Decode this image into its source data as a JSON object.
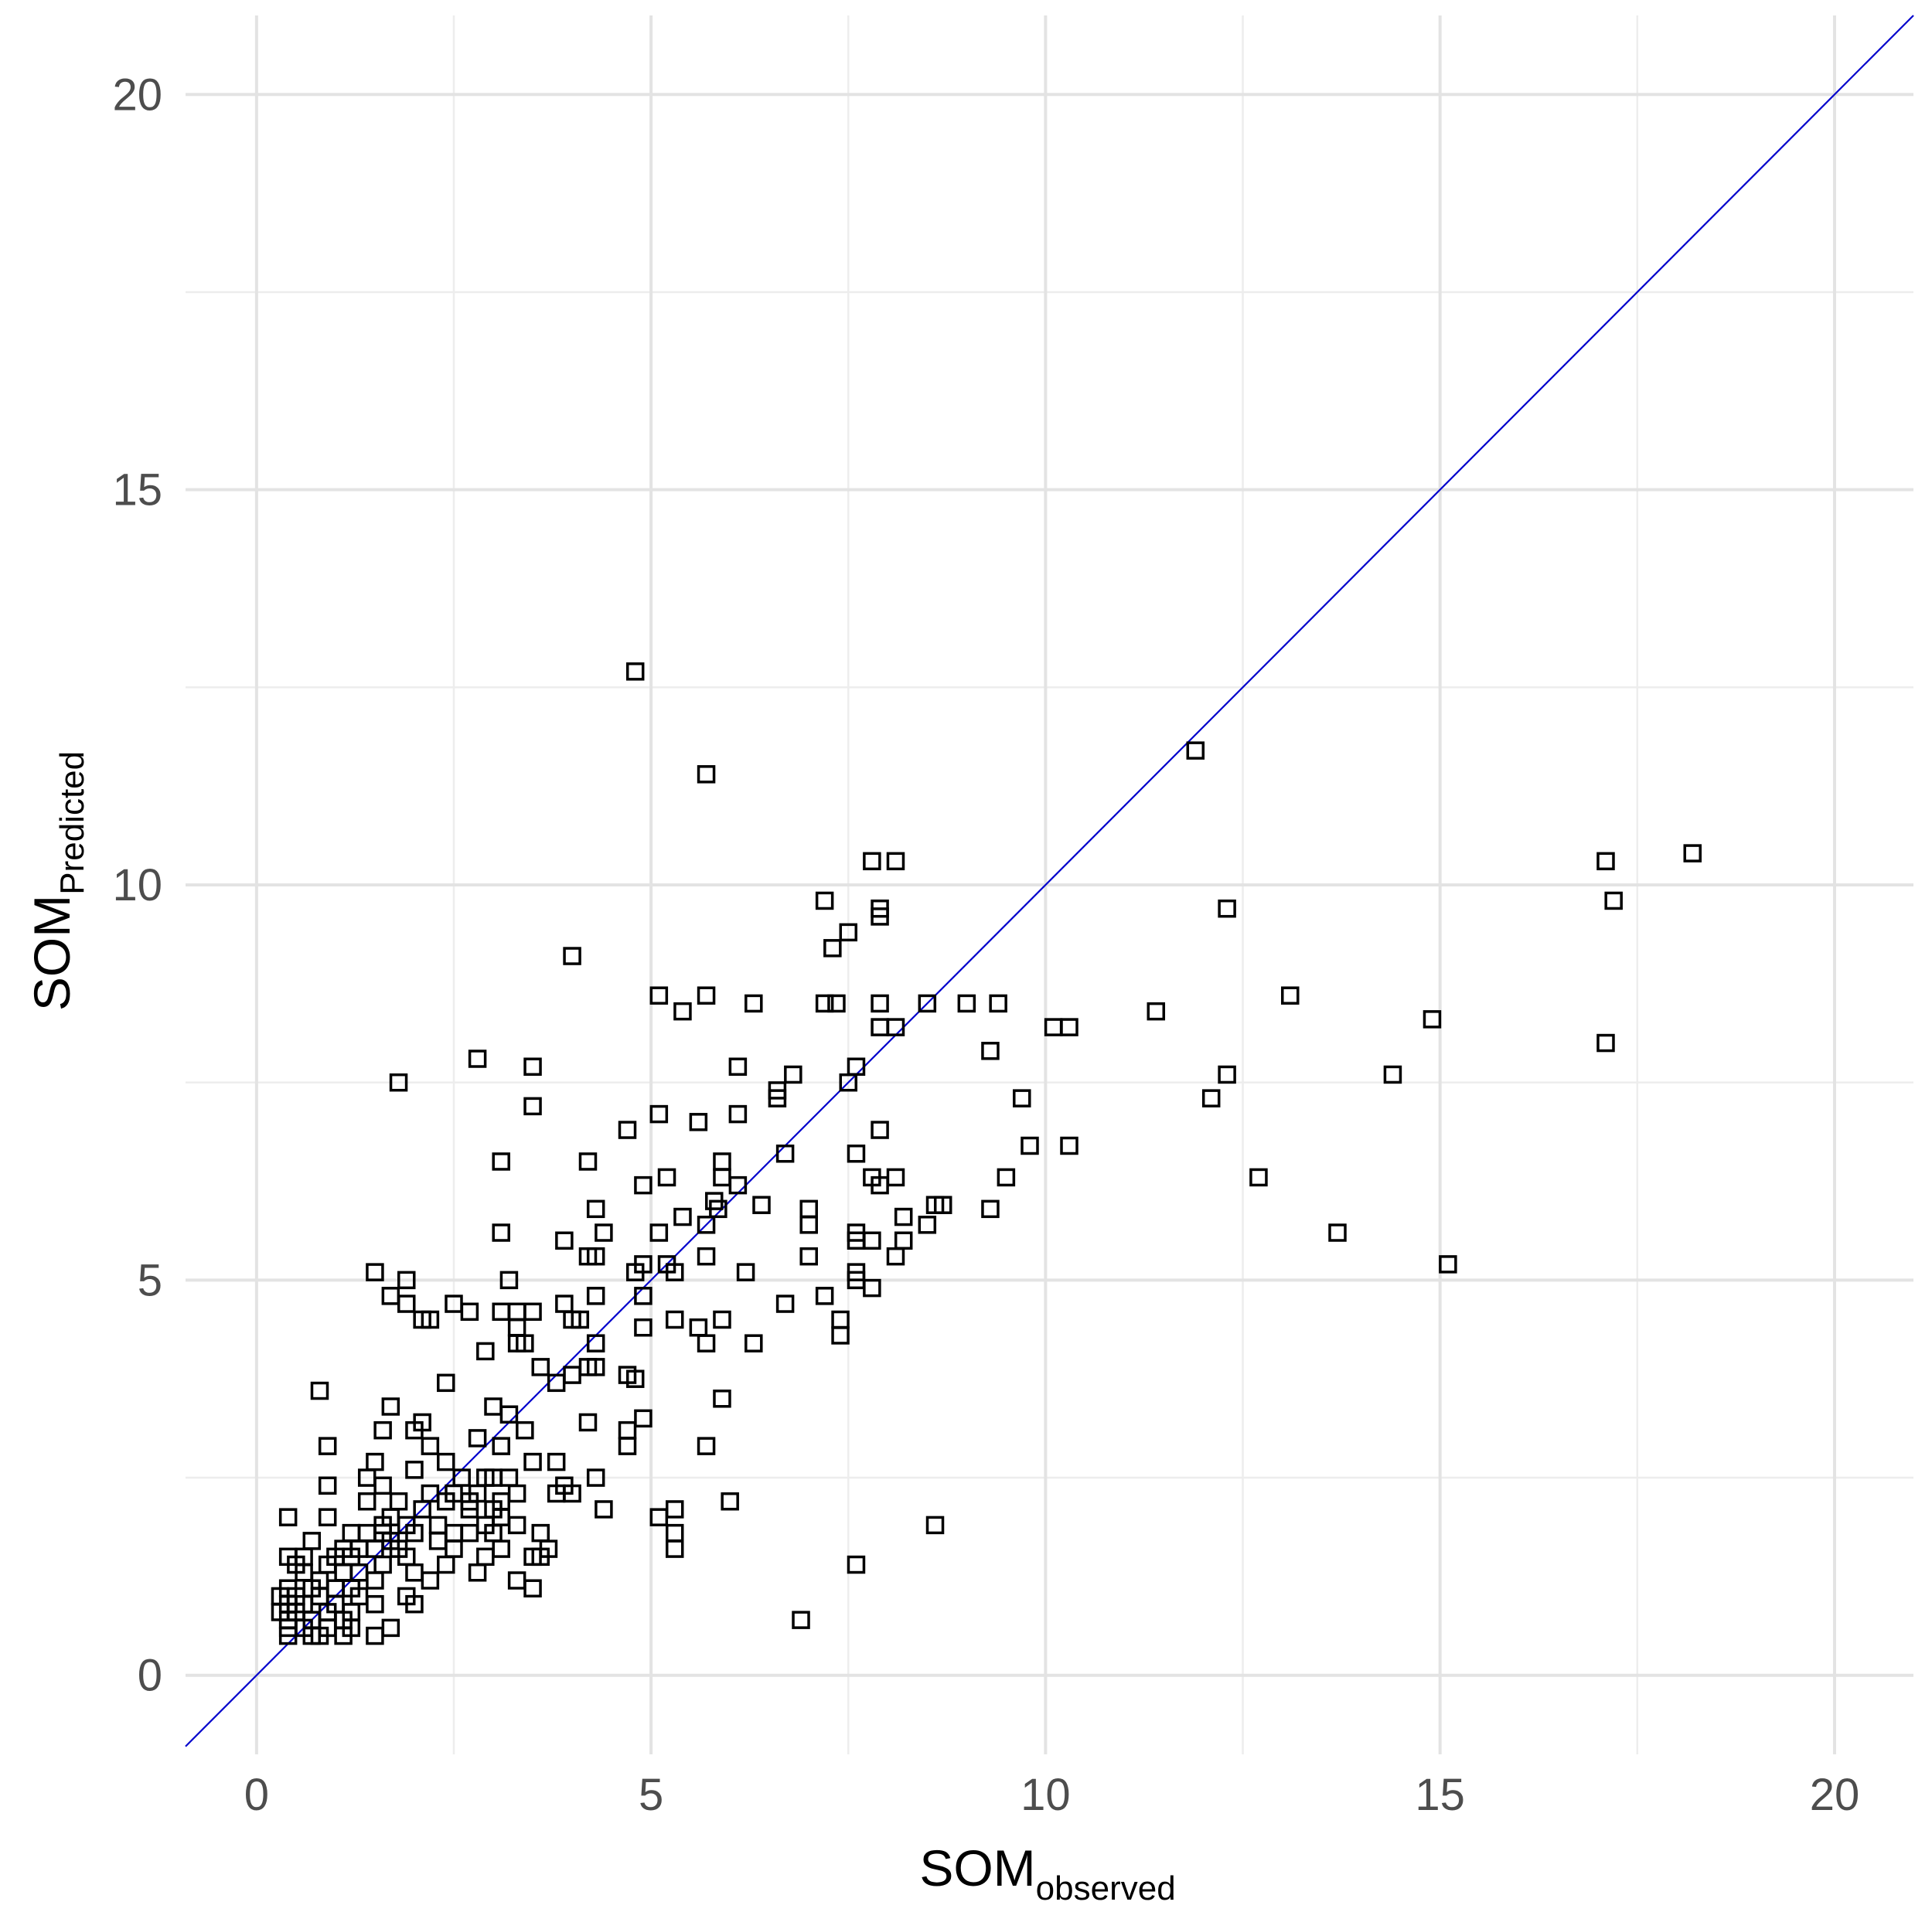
{
  "chart_data": {
    "type": "scatter",
    "title": "",
    "xlabel": {
      "main": "SOM",
      "sub": "observed"
    },
    "ylabel": {
      "main": "SOM",
      "sub": "Predicted"
    },
    "xlim": [
      -0.9,
      21.0
    ],
    "ylim": [
      -1.0,
      21.0
    ],
    "xticks": [
      0,
      5,
      10,
      15,
      20
    ],
    "yticks": [
      0,
      5,
      10,
      15,
      20
    ],
    "grid": true,
    "legend": "none",
    "marker": "open-square",
    "reference_line": {
      "type": "identity",
      "slope": 1,
      "intercept": 0,
      "color": "#0000cc"
    },
    "colors": {
      "points": "#000000",
      "reference_line": "#0000cc",
      "grid": "#e3e3e3"
    },
    "points": [
      [
        4.8,
        12.7
      ],
      [
        5.7,
        11.4
      ],
      [
        11.9,
        11.7
      ],
      [
        7.8,
        10.3
      ],
      [
        8.1,
        10.3
      ],
      [
        17.1,
        10.3
      ],
      [
        18.2,
        10.4
      ],
      [
        7.2,
        9.8
      ],
      [
        7.9,
        9.7
      ],
      [
        7.9,
        9.6
      ],
      [
        12.3,
        9.7
      ],
      [
        17.2,
        9.8
      ],
      [
        7.5,
        9.4
      ],
      [
        7.3,
        9.2
      ],
      [
        4.0,
        9.1
      ],
      [
        5.1,
        8.6
      ],
      [
        5.7,
        8.6
      ],
      [
        5.4,
        8.4
      ],
      [
        6.3,
        8.5
      ],
      [
        7.2,
        8.5
      ],
      [
        7.35,
        8.5
      ],
      [
        7.9,
        8.5
      ],
      [
        8.5,
        8.5
      ],
      [
        9.0,
        8.5
      ],
      [
        9.4,
        8.5
      ],
      [
        11.4,
        8.4
      ],
      [
        13.1,
        8.6
      ],
      [
        7.9,
        8.2
      ],
      [
        8.1,
        8.2
      ],
      [
        10.1,
        8.2
      ],
      [
        10.3,
        8.2
      ],
      [
        14.9,
        8.3
      ],
      [
        17.1,
        8.0
      ],
      [
        9.3,
        7.9
      ],
      [
        2.8,
        7.8
      ],
      [
        3.5,
        7.7
      ],
      [
        1.8,
        7.5
      ],
      [
        6.1,
        7.7
      ],
      [
        6.8,
        7.6
      ],
      [
        7.6,
        7.7
      ],
      [
        7.5,
        7.5
      ],
      [
        12.3,
        7.6
      ],
      [
        14.4,
        7.6
      ],
      [
        6.6,
        7.4
      ],
      [
        6.6,
        7.3
      ],
      [
        9.7,
        7.3
      ],
      [
        12.1,
        7.3
      ],
      [
        3.5,
        7.2
      ],
      [
        5.1,
        7.1
      ],
      [
        5.6,
        7.0
      ],
      [
        6.1,
        7.1
      ],
      [
        4.7,
        6.9
      ],
      [
        7.9,
        6.9
      ],
      [
        3.1,
        6.5
      ],
      [
        4.2,
        6.5
      ],
      [
        5.9,
        6.5
      ],
      [
        6.7,
        6.6
      ],
      [
        7.6,
        6.6
      ],
      [
        9.8,
        6.7
      ],
      [
        10.3,
        6.7
      ],
      [
        5.2,
        6.3
      ],
      [
        4.9,
        6.2
      ],
      [
        5.9,
        6.3
      ],
      [
        6.1,
        6.2
      ],
      [
        7.8,
        6.3
      ],
      [
        7.9,
        6.2
      ],
      [
        8.1,
        6.3
      ],
      [
        9.5,
        6.3
      ],
      [
        12.7,
        6.3
      ],
      [
        5.8,
        6.0
      ],
      [
        5.85,
        5.9
      ],
      [
        6.4,
        5.95
      ],
      [
        7.0,
        5.9
      ],
      [
        7.0,
        5.7
      ],
      [
        8.6,
        5.95
      ],
      [
        8.7,
        5.95
      ],
      [
        9.3,
        5.9
      ],
      [
        4.3,
        5.9
      ],
      [
        5.4,
        5.8
      ],
      [
        5.7,
        5.7
      ],
      [
        8.2,
        5.8
      ],
      [
        8.5,
        5.7
      ],
      [
        3.1,
        5.6
      ],
      [
        4.4,
        5.6
      ],
      [
        5.1,
        5.6
      ],
      [
        7.6,
        5.6
      ],
      [
        3.9,
        5.5
      ],
      [
        7.6,
        5.5
      ],
      [
        7.8,
        5.5
      ],
      [
        8.2,
        5.5
      ],
      [
        13.7,
        5.6
      ],
      [
        4.2,
        5.3
      ],
      [
        4.3,
        5.3
      ],
      [
        5.7,
        5.3
      ],
      [
        7.0,
        5.3
      ],
      [
        8.1,
        5.3
      ],
      [
        15.1,
        5.2
      ],
      [
        1.5,
        5.1
      ],
      [
        1.9,
        5.0
      ],
      [
        3.2,
        5.0
      ],
      [
        4.8,
        5.1
      ],
      [
        4.9,
        5.2
      ],
      [
        5.2,
        5.2
      ],
      [
        5.3,
        5.1
      ],
      [
        6.2,
        5.1
      ],
      [
        7.6,
        5.1
      ],
      [
        7.6,
        5.0
      ],
      [
        7.8,
        4.9
      ],
      [
        1.7,
        4.8
      ],
      [
        1.9,
        4.7
      ],
      [
        2.5,
        4.7
      ],
      [
        2.7,
        4.6
      ],
      [
        3.1,
        4.6
      ],
      [
        3.3,
        4.6
      ],
      [
        3.5,
        4.6
      ],
      [
        3.9,
        4.7
      ],
      [
        4.3,
        4.8
      ],
      [
        4.9,
        4.8
      ],
      [
        5.3,
        4.5
      ],
      [
        5.9,
        4.5
      ],
      [
        6.7,
        4.7
      ],
      [
        7.2,
        4.8
      ],
      [
        2.1,
        4.5
      ],
      [
        2.2,
        4.5
      ],
      [
        3.3,
        4.4
      ],
      [
        4.0,
        4.5
      ],
      [
        4.1,
        4.5
      ],
      [
        4.9,
        4.4
      ],
      [
        5.6,
        4.4
      ],
      [
        7.4,
        4.5
      ],
      [
        2.9,
        4.1
      ],
      [
        3.3,
        4.2
      ],
      [
        3.4,
        4.2
      ],
      [
        4.3,
        4.2
      ],
      [
        5.7,
        4.2
      ],
      [
        6.3,
        4.2
      ],
      [
        7.4,
        4.3
      ],
      [
        3.6,
        3.9
      ],
      [
        4.0,
        3.8
      ],
      [
        4.2,
        3.9
      ],
      [
        4.3,
        3.9
      ],
      [
        4.7,
        3.8
      ],
      [
        4.8,
        3.75
      ],
      [
        3.8,
        3.7
      ],
      [
        2.4,
        3.7
      ],
      [
        0.8,
        3.6
      ],
      [
        1.7,
        3.4
      ],
      [
        3.0,
        3.4
      ],
      [
        3.2,
        3.3
      ],
      [
        5.9,
        3.5
      ],
      [
        4.2,
        3.2
      ],
      [
        4.9,
        3.25
      ],
      [
        4.7,
        3.1
      ],
      [
        2.1,
        3.2
      ],
      [
        1.6,
        3.1
      ],
      [
        3.4,
        3.1
      ],
      [
        2.2,
        2.9
      ],
      [
        3.1,
        2.9
      ],
      [
        2.8,
        3.0
      ],
      [
        4.7,
        2.9
      ],
      [
        0.9,
        2.9
      ],
      [
        5.7,
        2.9
      ],
      [
        2.0,
        3.1
      ],
      [
        1.5,
        2.7
      ],
      [
        2.4,
        2.7
      ],
      [
        3.5,
        2.7
      ],
      [
        2.0,
        2.6
      ],
      [
        3.2,
        2.5
      ],
      [
        3.8,
        2.7
      ],
      [
        0.9,
        2.4
      ],
      [
        1.4,
        2.5
      ],
      [
        2.6,
        2.5
      ],
      [
        2.9,
        2.5
      ],
      [
        3.0,
        2.5
      ],
      [
        3.9,
        2.4
      ],
      [
        4.3,
        2.5
      ],
      [
        1.6,
        2.4
      ],
      [
        2.2,
        2.3
      ],
      [
        2.5,
        2.3
      ],
      [
        3.3,
        2.3
      ],
      [
        3.8,
        2.3
      ],
      [
        4.0,
        2.3
      ],
      [
        1.4,
        2.2
      ],
      [
        1.8,
        2.2
      ],
      [
        2.4,
        2.2
      ],
      [
        2.7,
        2.2
      ],
      [
        2.8,
        2.3
      ],
      [
        3.1,
        2.2
      ],
      [
        1.7,
        2.0
      ],
      [
        2.1,
        2.1
      ],
      [
        2.7,
        2.1
      ],
      [
        3.0,
        2.1
      ],
      [
        3.1,
        2.0
      ],
      [
        4.4,
        2.1
      ],
      [
        5.1,
        2.0
      ],
      [
        5.3,
        2.1
      ],
      [
        6.0,
        2.2
      ],
      [
        0.4,
        2.0
      ],
      [
        0.9,
        2.0
      ],
      [
        1.6,
        1.9
      ],
      [
        1.9,
        1.9
      ],
      [
        2.3,
        1.9
      ],
      [
        2.9,
        1.9
      ],
      [
        3.3,
        1.9
      ],
      [
        2.5,
        1.8
      ],
      [
        1.2,
        1.8
      ],
      [
        1.4,
        1.8
      ],
      [
        1.6,
        1.8
      ],
      [
        2.0,
        1.8
      ],
      [
        2.7,
        1.8
      ],
      [
        3.0,
        1.8
      ],
      [
        3.6,
        1.8
      ],
      [
        5.3,
        1.8
      ],
      [
        8.6,
        1.9
      ],
      [
        0.7,
        1.7
      ],
      [
        1.7,
        1.7
      ],
      [
        2.3,
        1.7
      ],
      [
        3.1,
        1.6
      ],
      [
        3.7,
        1.6
      ],
      [
        1.1,
        1.6
      ],
      [
        1.3,
        1.6
      ],
      [
        1.5,
        1.6
      ],
      [
        1.8,
        1.6
      ],
      [
        2.5,
        1.6
      ],
      [
        5.3,
        1.6
      ],
      [
        0.4,
        1.5
      ],
      [
        0.6,
        1.5
      ],
      [
        1.0,
        1.5
      ],
      [
        1.2,
        1.5
      ],
      [
        1.9,
        1.5
      ],
      [
        2.9,
        1.5
      ],
      [
        3.5,
        1.5
      ],
      [
        3.6,
        1.5
      ],
      [
        0.5,
        1.4
      ],
      [
        0.9,
        1.4
      ],
      [
        1.6,
        1.4
      ],
      [
        2.4,
        1.4
      ],
      [
        2.8,
        1.3
      ],
      [
        7.6,
        1.4
      ],
      [
        0.6,
        1.3
      ],
      [
        1.1,
        1.3
      ],
      [
        1.3,
        1.3
      ],
      [
        2.0,
        1.3
      ],
      [
        0.8,
        1.2
      ],
      [
        1.5,
        1.2
      ],
      [
        2.2,
        1.2
      ],
      [
        3.3,
        1.2
      ],
      [
        0.4,
        1.1
      ],
      [
        0.7,
        1.1
      ],
      [
        1.0,
        1.1
      ],
      [
        1.2,
        1.1
      ],
      [
        3.5,
        1.1
      ],
      [
        0.3,
        1.0
      ],
      [
        0.5,
        1.0
      ],
      [
        0.8,
        1.0
      ],
      [
        1.3,
        1.0
      ],
      [
        1.9,
        1.0
      ],
      [
        0.4,
        0.9
      ],
      [
        0.6,
        0.9
      ],
      [
        1.0,
        0.9
      ],
      [
        1.5,
        0.9
      ],
      [
        2.0,
        0.9
      ],
      [
        0.3,
        0.8
      ],
      [
        0.5,
        0.8
      ],
      [
        0.9,
        0.8
      ],
      [
        1.2,
        0.8
      ],
      [
        0.4,
        0.7
      ],
      [
        0.7,
        0.7
      ],
      [
        1.1,
        0.7
      ],
      [
        6.9,
        0.7
      ],
      [
        0.4,
        0.6
      ],
      [
        0.6,
        0.6
      ],
      [
        0.9,
        0.6
      ],
      [
        1.2,
        0.6
      ],
      [
        1.7,
        0.6
      ],
      [
        0.4,
        0.5
      ],
      [
        0.7,
        0.5
      ],
      [
        0.8,
        0.5
      ],
      [
        1.1,
        0.5
      ],
      [
        1.5,
        0.5
      ]
    ]
  }
}
